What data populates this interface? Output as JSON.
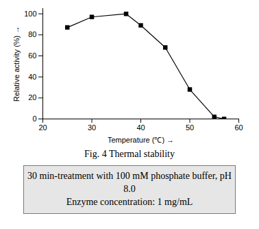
{
  "chart_data": {
    "type": "line",
    "title": "Fig. 4 Thermal stability",
    "annotations": [
      "30 min-treatment with 100 mM phosphate buffer, pH 8.0",
      "Enzyme concentration: 1 mg/mL"
    ],
    "x_label": "Temperature (℃)",
    "y_label": "Relative activity (%)",
    "x": [
      25,
      30,
      37,
      40,
      45,
      50,
      55,
      57
    ],
    "values": [
      87,
      97,
      100,
      89,
      68,
      28,
      2,
      0
    ],
    "color": "#000000",
    "marker": "square",
    "line_style": "solid",
    "xlim": [
      20,
      60
    ],
    "xticks": [
      20,
      30,
      40,
      50,
      60
    ],
    "ylim": [
      0,
      105
    ],
    "yticks": [
      0,
      20,
      40,
      60,
      80,
      100
    ],
    "grid": false
  }
}
